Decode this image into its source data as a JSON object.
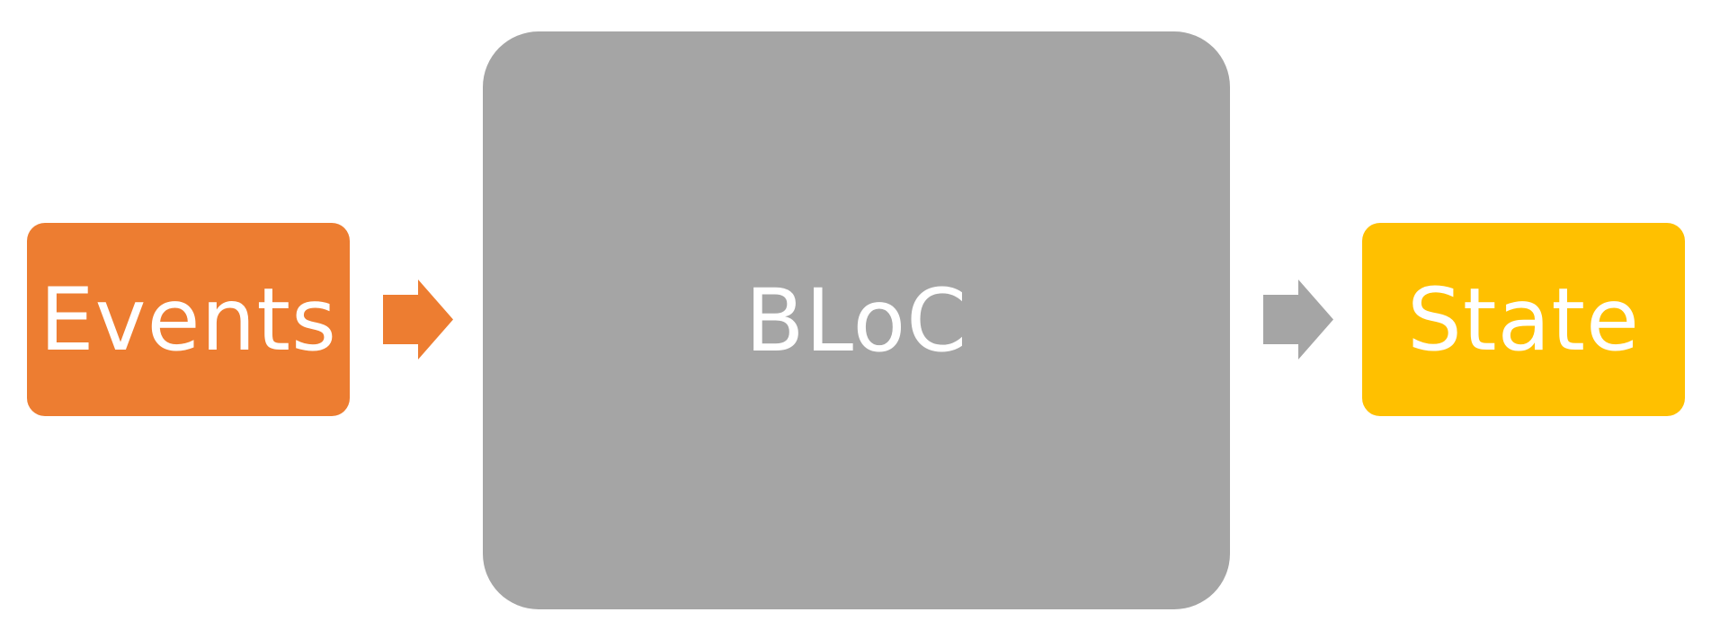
{
  "nodes": {
    "events": {
      "label": "Events",
      "color": "#ED7D31"
    },
    "bloc": {
      "label": "BLoC",
      "color": "#A5A5A5"
    },
    "state": {
      "label": "State",
      "color": "#FFC000"
    }
  },
  "arrows": {
    "events_to_bloc": {
      "color": "#ED7D31"
    },
    "bloc_to_state": {
      "color": "#A5A5A5"
    }
  }
}
